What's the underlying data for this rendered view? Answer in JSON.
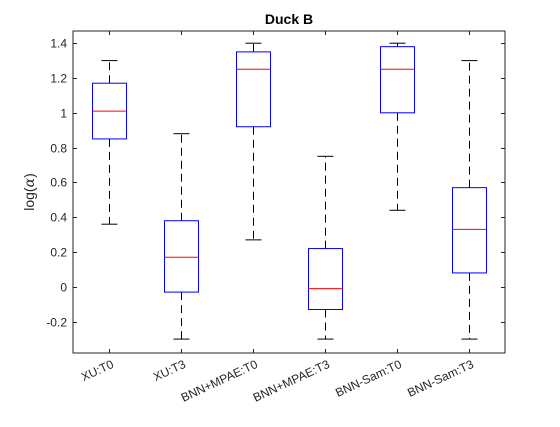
{
  "chart_data": {
    "type": "box",
    "title": "Duck B",
    "ylabel": "log(α)",
    "ylabel_parts": {
      "prefix": "log(",
      "symbol": "α",
      "suffix": ")"
    },
    "xlabel": "",
    "ylim": [
      -0.38,
      1.47
    ],
    "yticks": [
      -0.2,
      0,
      0.2,
      0.4,
      0.6,
      0.8,
      1,
      1.2,
      1.4
    ],
    "ytick_labels": [
      "-0.2",
      "0",
      "0.2",
      "0.4",
      "0.6",
      "0.8",
      "1",
      "1.2",
      "1.4"
    ],
    "grid": false,
    "categories": [
      "XU:T0",
      "XU:T3",
      "BNN+MPAE:T0",
      "BNN+MPAE:T3",
      "BNN-Sam:T0",
      "BNN-Sam:T3"
    ],
    "boxes": [
      {
        "whisker_low": 0.36,
        "q1": 0.85,
        "median": 1.01,
        "q3": 1.17,
        "whisker_high": 1.3
      },
      {
        "whisker_low": -0.3,
        "q1": -0.03,
        "median": 0.17,
        "q3": 0.38,
        "whisker_high": 0.88
      },
      {
        "whisker_low": 0.27,
        "q1": 0.92,
        "median": 1.25,
        "q3": 1.35,
        "whisker_high": 1.4
      },
      {
        "whisker_low": -0.3,
        "q1": -0.13,
        "median": -0.01,
        "q3": 0.22,
        "whisker_high": 0.75
      },
      {
        "whisker_low": 0.44,
        "q1": 1.0,
        "median": 1.25,
        "q3": 1.38,
        "whisker_high": 1.4
      },
      {
        "whisker_low": -0.3,
        "q1": 0.08,
        "median": 0.33,
        "q3": 0.57,
        "whisker_high": 1.3
      }
    ],
    "colors": {
      "box": "#0000ff",
      "median": "#ff0000",
      "whisker": "#000000",
      "axes": "#262626"
    }
  }
}
